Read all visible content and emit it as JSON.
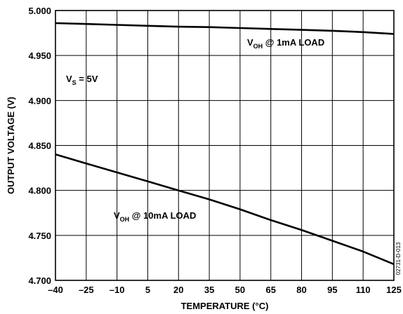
{
  "chart_data": {
    "type": "line",
    "xlabel": "TEMPERATURE (°C)",
    "ylabel": "OUTPUT VOLTAGE (V)",
    "xlim": [
      -40,
      125
    ],
    "ylim": [
      4.7,
      5.0
    ],
    "xticks": [
      "–40",
      "–25",
      "–10",
      "5",
      "20",
      "35",
      "50",
      "65",
      "80",
      "95",
      "110",
      "125"
    ],
    "xtick_values": [
      -40,
      -25,
      -10,
      5,
      20,
      35,
      50,
      65,
      80,
      95,
      110,
      125
    ],
    "yticks": [
      "4.700",
      "4.750",
      "4.800",
      "4.850",
      "4.900",
      "4.950",
      "5.000"
    ],
    "ytick_values": [
      4.7,
      4.75,
      4.8,
      4.85,
      4.9,
      4.95,
      5.0
    ],
    "grid": true,
    "series": [
      {
        "name": "VOH @ 1mA LOAD",
        "x": [
          -40,
          -25,
          -10,
          5,
          20,
          35,
          50,
          65,
          80,
          95,
          110,
          125
        ],
        "y": [
          4.986,
          4.985,
          4.984,
          4.983,
          4.982,
          4.9815,
          4.9805,
          4.9795,
          4.9785,
          4.9775,
          4.976,
          4.974
        ]
      },
      {
        "name": "VOH @ 10mA LOAD",
        "x": [
          -40,
          -25,
          -10,
          5,
          20,
          35,
          50,
          65,
          80,
          95,
          110,
          125
        ],
        "y": [
          4.84,
          4.83,
          4.82,
          4.81,
          4.8,
          4.79,
          4.779,
          4.767,
          4.756,
          4.744,
          4.732,
          4.718
        ]
      }
    ],
    "annotations": {
      "series1_main": "V",
      "series1_sub": "OH",
      "series1_rest": " @ 1mA LOAD",
      "series2_main": "V",
      "series2_sub": "OH",
      "series2_rest": " @ 10mA LOAD",
      "supply_main": "V",
      "supply_sub": "S",
      "supply_rest": " = 5V"
    },
    "figure_code": "02731-D-013"
  }
}
